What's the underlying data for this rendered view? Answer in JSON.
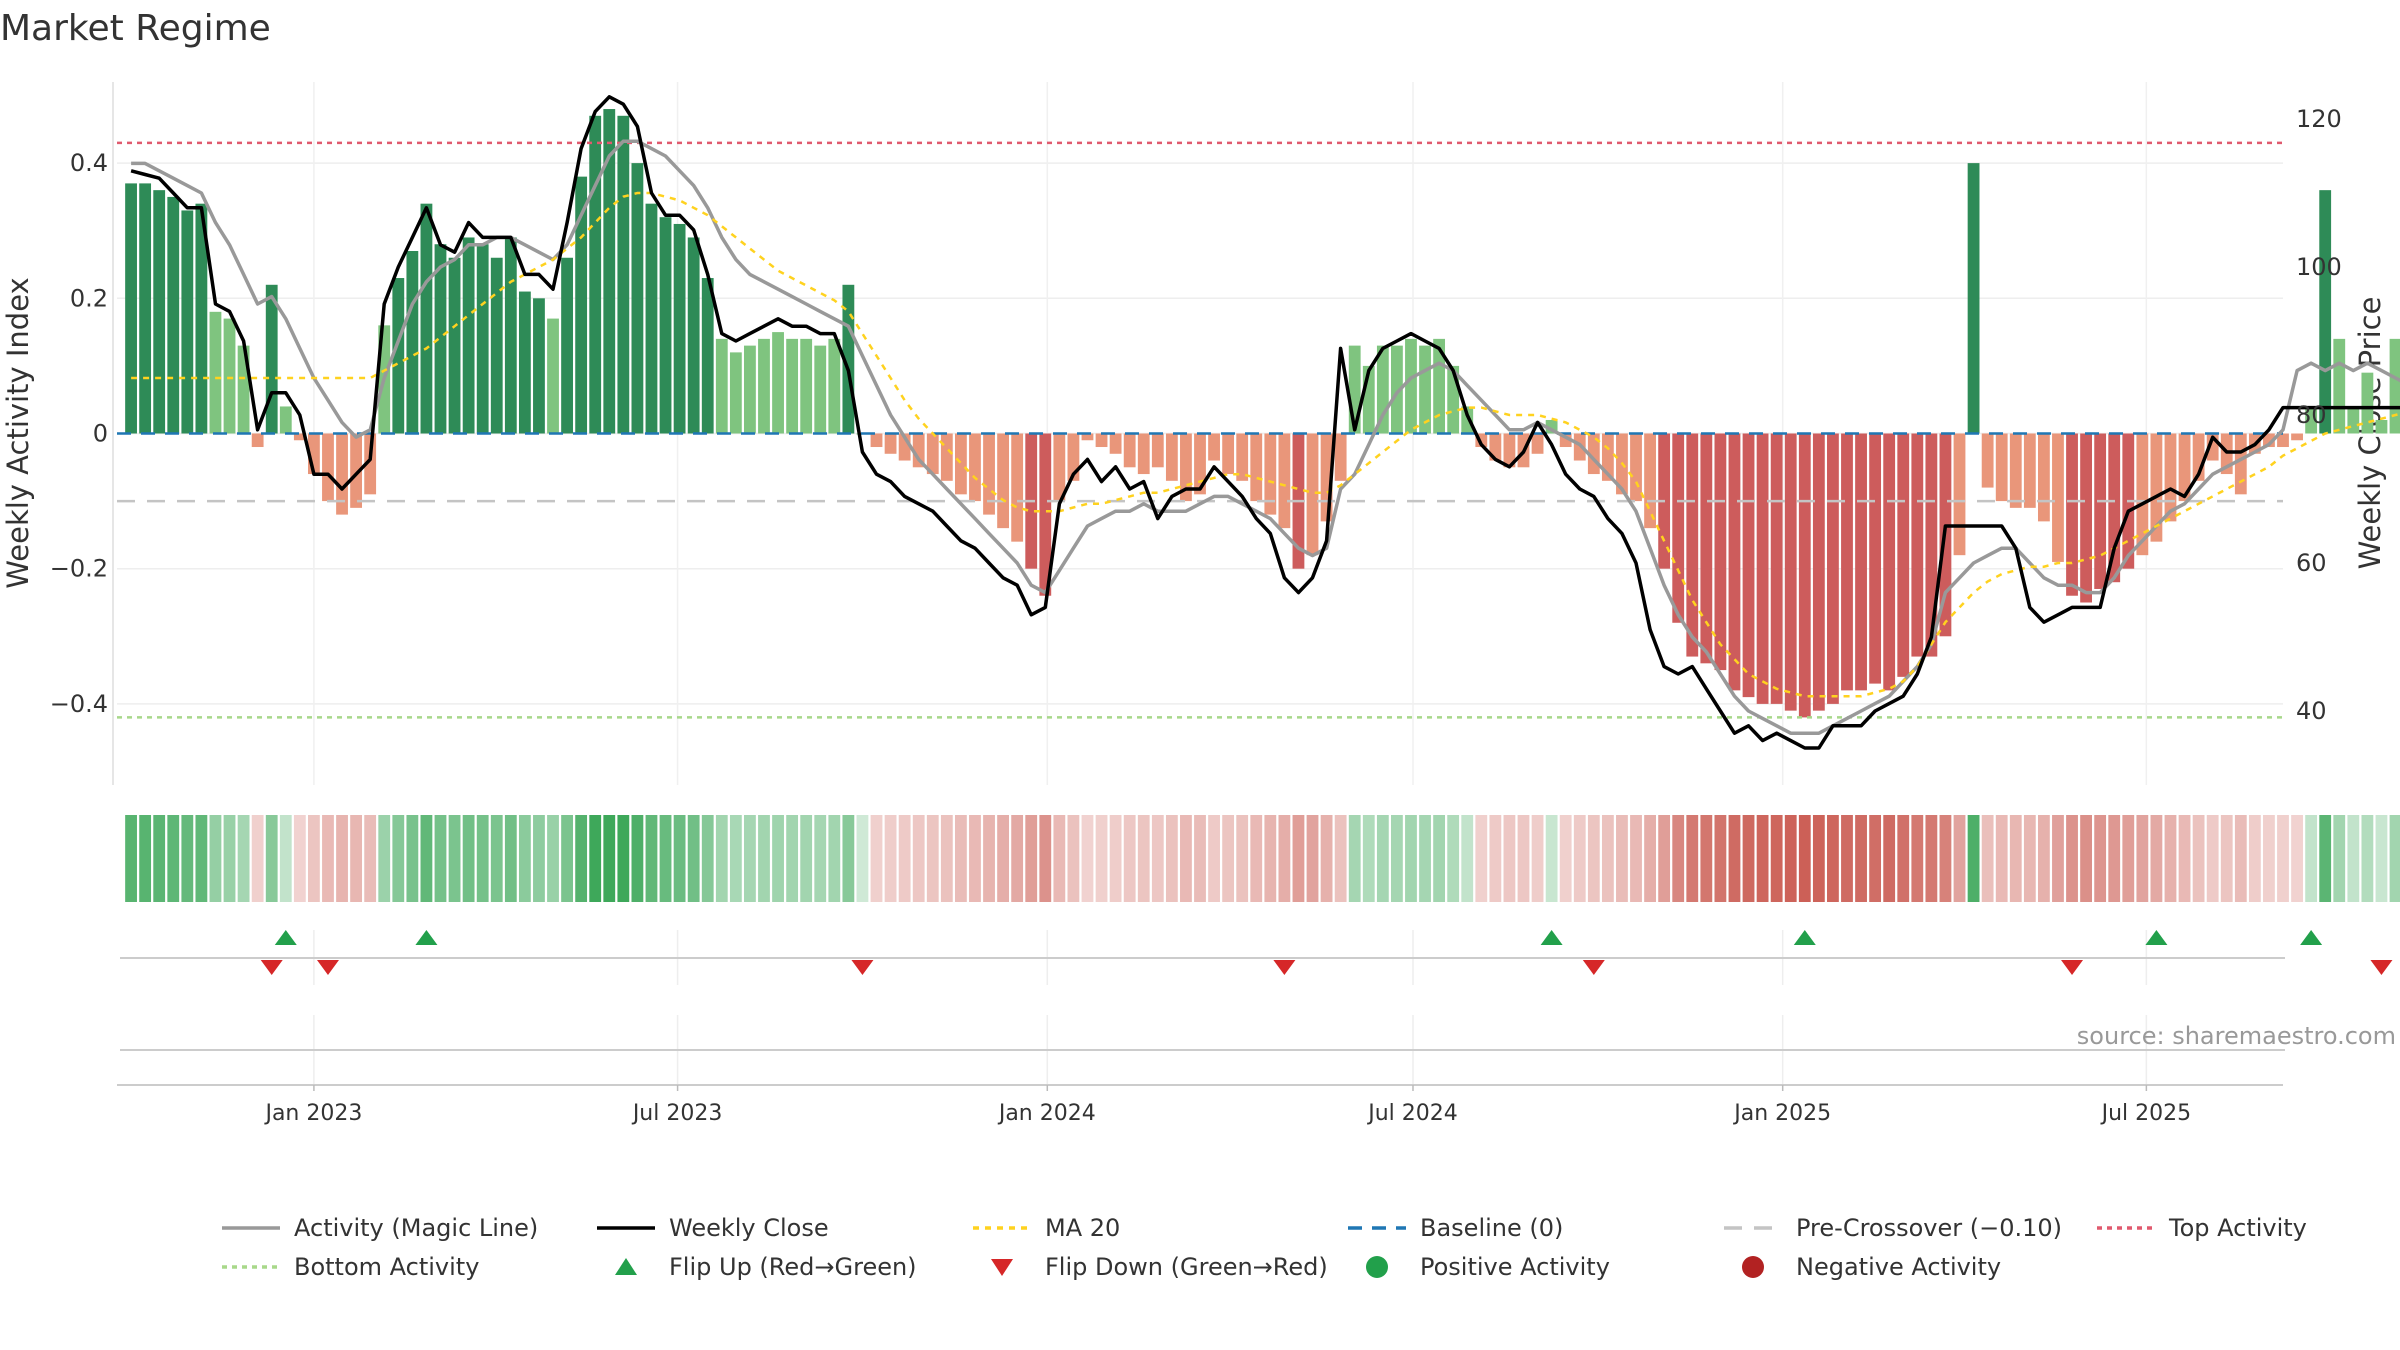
{
  "chart_data": {
    "type": "bar",
    "title": "Market Regime",
    "source": "source: sharemaestro.com",
    "y_left": {
      "label": "Weekly Activity Index",
      "lim": [
        -0.52,
        0.52
      ],
      "ticks": [
        0.4,
        0.2,
        0,
        -0.2,
        -0.4
      ],
      "tick_labels": [
        "0.4",
        "0.2",
        "0",
        "−0.2",
        "−0.4"
      ]
    },
    "y_right": {
      "label": "Weekly Close Price",
      "lim": [
        30,
        125
      ],
      "ticks": [
        120,
        100,
        80,
        60,
        40
      ],
      "tick_labels": [
        "120",
        "100",
        "80",
        "60",
        "40"
      ]
    },
    "x_ticks": [
      {
        "date": "2023-01-01",
        "label": "Jan 2023"
      },
      {
        "date": "2023-07-01",
        "label": "Jul 2023"
      },
      {
        "date": "2024-01-01",
        "label": "Jan 2024"
      },
      {
        "date": "2024-07-01",
        "label": "Jul 2024"
      },
      {
        "date": "2025-01-01",
        "label": "Jan 2025"
      },
      {
        "date": "2025-07-01",
        "label": "Jul 2025"
      }
    ],
    "x_range": [
      "2022-09-25",
      "2025-09-07"
    ],
    "weeks_start": "2022-10-02",
    "top_activity": 0.43,
    "bottom_activity": -0.42,
    "pre_crossover": -0.1,
    "baseline": 0,
    "activity": [
      0.37,
      0.37,
      0.36,
      0.35,
      0.33,
      0.34,
      0.18,
      0.17,
      0.13,
      -0.02,
      0.22,
      0.04,
      -0.01,
      -0.06,
      -0.1,
      -0.12,
      -0.11,
      -0.09,
      0.16,
      0.23,
      0.27,
      0.34,
      0.28,
      0.26,
      0.29,
      0.28,
      0.26,
      0.29,
      0.21,
      0.2,
      0.17,
      0.26,
      0.38,
      0.47,
      0.48,
      0.47,
      0.4,
      0.34,
      0.32,
      0.31,
      0.29,
      0.23,
      0.14,
      0.12,
      0.13,
      0.14,
      0.15,
      0.14,
      0.14,
      0.13,
      0.14,
      0.22,
      0.0,
      -0.02,
      -0.03,
      -0.04,
      -0.05,
      -0.06,
      -0.07,
      -0.09,
      -0.1,
      -0.12,
      -0.14,
      -0.16,
      -0.2,
      -0.24,
      -0.1,
      -0.07,
      -0.01,
      -0.02,
      -0.03,
      -0.05,
      -0.06,
      -0.05,
      -0.07,
      -0.1,
      -0.09,
      -0.04,
      -0.06,
      -0.07,
      -0.1,
      -0.12,
      -0.14,
      -0.2,
      -0.18,
      -0.13,
      -0.07,
      0.13,
      0.1,
      0.13,
      0.13,
      0.14,
      0.13,
      0.14,
      0.1,
      0.04,
      -0.02,
      -0.04,
      -0.05,
      -0.05,
      -0.03,
      0.02,
      -0.02,
      -0.04,
      -0.06,
      -0.07,
      -0.09,
      -0.1,
      -0.14,
      -0.2,
      -0.28,
      -0.33,
      -0.34,
      -0.35,
      -0.38,
      -0.39,
      -0.4,
      -0.4,
      -0.41,
      -0.42,
      -0.41,
      -0.4,
      -0.38,
      -0.38,
      -0.37,
      -0.38,
      -0.36,
      -0.33,
      -0.33,
      -0.3,
      -0.18,
      0.4,
      -0.08,
      -0.1,
      -0.11,
      -0.11,
      -0.13,
      -0.19,
      -0.24,
      -0.25,
      -0.23,
      -0.22,
      -0.2,
      -0.18,
      -0.16,
      -0.13,
      -0.1,
      -0.07,
      -0.04,
      -0.06,
      -0.09,
      -0.03,
      -0.02,
      -0.02,
      -0.01,
      0.04,
      0.36,
      0.14,
      0.04,
      0.09,
      0.02,
      0.14,
      0.03,
      0.03,
      0.03,
      0.03,
      0.02,
      0.02,
      0.03
    ],
    "weekly_close": [
      113.0,
      112.5,
      112.0,
      110.0,
      108.0,
      108.0,
      95.0,
      94.0,
      90.0,
      78.0,
      83.0,
      83.0,
      80.0,
      72.0,
      72.0,
      70.0,
      72.0,
      74.0,
      95.0,
      100.0,
      104.0,
      108.0,
      103.0,
      102.0,
      106.0,
      104.0,
      104.0,
      104.0,
      99.0,
      99.0,
      97.0,
      106.0,
      116.0,
      121.0,
      123.0,
      122.0,
      119.0,
      110.0,
      107.0,
      107.0,
      105.0,
      99.0,
      91.0,
      90.0,
      91.0,
      92.0,
      93.0,
      92.0,
      92.0,
      91.0,
      91.0,
      86.0,
      75.0,
      72.0,
      71.0,
      69.0,
      68.0,
      67.0,
      65.0,
      63.0,
      62.0,
      60.0,
      58.0,
      57.0,
      53.0,
      54.0,
      68.0,
      72.0,
      74.0,
      71.0,
      73.0,
      70.0,
      71.0,
      66.0,
      69.0,
      70.0,
      70.0,
      73.0,
      71.0,
      69.0,
      66.0,
      64.0,
      58.0,
      56.0,
      58.0,
      63.0,
      89.0,
      78.0,
      86.0,
      89.0,
      90.0,
      91.0,
      90.0,
      89.0,
      86.0,
      80.0,
      76.0,
      74.0,
      73.0,
      75.0,
      79.0,
      76.0,
      72.0,
      70.0,
      69.0,
      66.0,
      64.0,
      60.0,
      51.0,
      46.0,
      45.0,
      46.0,
      43.0,
      40.0,
      37.0,
      38.0,
      36.0,
      37.0,
      36.0,
      35.0,
      35.0,
      38.0,
      38.0,
      38.0,
      40.0,
      41.0,
      42.0,
      45.0,
      50.0,
      65.0,
      65.0,
      65.0,
      65.0,
      65.0,
      62.0,
      54.0,
      52.0,
      53.0,
      54.0,
      54.0,
      54.0,
      62.0,
      67.0,
      68.0,
      69.0,
      70.0,
      69.0,
      72.0,
      77.0,
      75.0,
      75.0,
      76.0,
      78.0,
      81.0,
      81.0,
      81.0,
      81.0,
      81.0,
      81.0,
      81.0,
      81.0,
      81.0,
      81.0,
      80.0,
      81.0,
      80.0
    ],
    "magic_line": [
      114.0,
      114.0,
      113.0,
      112.0,
      111.0,
      110.0,
      106.0,
      103.0,
      99.0,
      95.0,
      96.0,
      93.0,
      89.0,
      85.0,
      82.0,
      79.0,
      77.0,
      78.0,
      85.0,
      90.0,
      95.0,
      98.0,
      100.0,
      101.0,
      103.0,
      103.0,
      104.0,
      104.0,
      103.0,
      102.0,
      101.0,
      103.0,
      107.0,
      111.0,
      115.0,
      117.0,
      117.0,
      116.0,
      115.0,
      113.0,
      111.0,
      108.0,
      104.0,
      101.0,
      99.0,
      98.0,
      97.0,
      96.0,
      95.0,
      94.0,
      93.0,
      92.0,
      88.0,
      84.0,
      80.0,
      77.0,
      74.0,
      72.0,
      70.0,
      68.0,
      66.0,
      64.0,
      62.0,
      60.0,
      57.0,
      56.0,
      59.0,
      62.0,
      65.0,
      66.0,
      67.0,
      67.0,
      68.0,
      67.0,
      67.0,
      67.0,
      68.0,
      69.0,
      69.0,
      68.0,
      67.0,
      66.0,
      64.0,
      62.0,
      61.0,
      62.0,
      70.0,
      72.0,
      76.0,
      80.0,
      83.0,
      85.0,
      86.0,
      87.0,
      86.0,
      84.0,
      82.0,
      80.0,
      78.0,
      78.0,
      79.0,
      78.0,
      77.0,
      76.0,
      74.0,
      72.0,
      70.0,
      67.0,
      62.0,
      57.0,
      53.0,
      50.0,
      48.0,
      45.0,
      42.0,
      40.0,
      39.0,
      38.0,
      37.0,
      37.0,
      37.0,
      38.0,
      39.0,
      40.0,
      41.0,
      42.0,
      44.0,
      46.0,
      49.0,
      56.0,
      58.0,
      60.0,
      61.0,
      62.0,
      62.0,
      60.0,
      58.0,
      57.0,
      57.0,
      56.0,
      56.0,
      58.0,
      61.0,
      63.0,
      65.0,
      67.0,
      68.0,
      70.0,
      72.0,
      73.0,
      74.0,
      75.0,
      76.0,
      78.0,
      86.0,
      87.0,
      86.0,
      87.0,
      86.0,
      87.0,
      86.0,
      85.0,
      84.0,
      84.0,
      83.0,
      83.0,
      83.0
    ],
    "ma20": [
      85.0,
      85.0,
      85.0,
      85.0,
      85.0,
      85.0,
      85.0,
      85.0,
      85.0,
      85.0,
      85.0,
      85.0,
      85.0,
      85.0,
      85.0,
      85.0,
      85.0,
      85.0,
      86.0,
      87.0,
      88.0,
      89.0,
      90.5,
      92.0,
      93.5,
      95.0,
      96.5,
      98.0,
      99.0,
      100.0,
      101.0,
      102.5,
      104.0,
      106.0,
      108.0,
      109.5,
      110.0,
      110.0,
      109.5,
      109.0,
      108.0,
      107.0,
      105.5,
      104.0,
      102.5,
      101.0,
      99.5,
      98.5,
      97.5,
      96.5,
      95.5,
      94.0,
      91.0,
      88.0,
      85.0,
      82.0,
      79.5,
      77.5,
      75.5,
      73.5,
      71.5,
      70.0,
      68.5,
      67.5,
      67.0,
      67.0,
      67.0,
      67.5,
      68.0,
      68.0,
      68.5,
      69.0,
      69.5,
      69.5,
      70.0,
      70.5,
      71.0,
      71.5,
      72.0,
      72.0,
      71.5,
      71.0,
      70.5,
      70.0,
      69.5,
      69.5,
      70.5,
      72.0,
      73.5,
      75.0,
      76.5,
      78.0,
      79.0,
      80.0,
      80.5,
      81.0,
      81.0,
      80.5,
      80.0,
      80.0,
      80.0,
      79.5,
      79.0,
      78.0,
      77.0,
      75.5,
      73.5,
      71.0,
      67.0,
      63.0,
      59.0,
      55.0,
      52.0,
      49.0,
      47.0,
      45.0,
      44.0,
      43.0,
      42.5,
      42.0,
      42.0,
      42.0,
      42.0,
      42.0,
      42.5,
      43.0,
      44.0,
      46.0,
      49.0,
      52.0,
      54.0,
      56.0,
      57.5,
      58.5,
      59.0,
      59.5,
      59.5,
      60.0,
      60.0,
      60.5,
      61.0,
      62.0,
      63.0,
      64.0,
      65.0,
      66.0,
      67.0,
      68.0,
      69.0,
      70.0,
      71.0,
      72.0,
      73.0,
      74.5,
      75.5,
      76.5,
      77.5,
      78.0,
      78.5,
      79.0,
      79.5,
      80.0,
      80.5,
      81.0,
      81.0,
      81.0
    ],
    "flip_up_weeks": [
      11,
      21,
      101,
      119,
      144,
      155,
      164,
      166
    ],
    "flip_down_weeks": [
      10,
      14,
      52,
      82,
      104,
      138,
      160
    ],
    "legend": [
      {
        "label": "Activity (Magic Line)",
        "kind": "line",
        "color": "#999999",
        "dash": ""
      },
      {
        "label": "Weekly Close",
        "kind": "line",
        "color": "#000000",
        "dash": ""
      },
      {
        "label": "MA 20",
        "kind": "line",
        "color": "#ffd21f",
        "dash": "6,6"
      },
      {
        "label": "Baseline (0)",
        "kind": "line",
        "color": "#1f77b4",
        "dash": "14,10"
      },
      {
        "label": "Pre-Crossover (−0.10)",
        "kind": "line",
        "color": "#c4c4c4",
        "dash": "18,12"
      },
      {
        "label": "Top Activity",
        "kind": "line",
        "color": "#e05a6e",
        "dash": "5,5"
      },
      {
        "label": "Bottom Activity",
        "kind": "line",
        "color": "#a8d88a",
        "dash": "5,5"
      },
      {
        "label": "Flip Up (Red→Green)",
        "kind": "tri-up",
        "color": "#22a04b",
        "dash": ""
      },
      {
        "label": "Flip Down (Green→Red)",
        "kind": "tri-down",
        "color": "#d62728",
        "dash": ""
      },
      {
        "label": "Positive Activity",
        "kind": "dot",
        "color": "#22a04b",
        "dash": ""
      },
      {
        "label": "Negative Activity",
        "kind": "dot",
        "color": "#b22222",
        "dash": ""
      }
    ],
    "colors": {
      "pos_strong": "#2e8b57",
      "pos_light": "#7fc47f",
      "neg_strong": "#cd5c5c",
      "neg_light": "#e9967a",
      "strip_pos": "#3ea85a",
      "strip_neg": "#c9584e",
      "top_line": "#e05a6e",
      "bottom_line": "#a8d88a",
      "pre_line": "#c4c4c4",
      "baseline": "#1f77b4",
      "magic": "#999999",
      "close": "#000000",
      "ma": "#ffd21f",
      "flip_up": "#22a04b",
      "flip_down": "#d62728"
    }
  }
}
